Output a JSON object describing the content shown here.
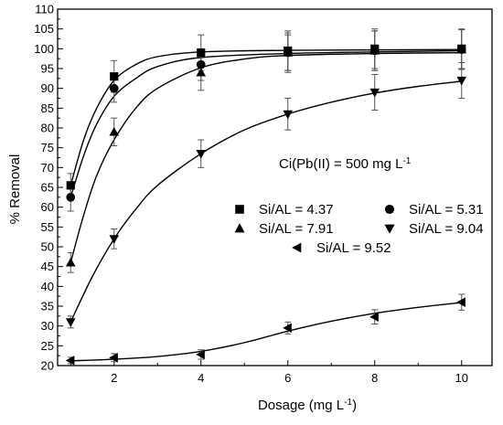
{
  "chart_data": {
    "type": "scatter",
    "title": "",
    "xlabel": "Dosage (mg L",
    "xlabel_sup": "-1",
    "xlabel_suffix": ")",
    "ylabel": "% Removal",
    "xlim": [
      0.7,
      10.7
    ],
    "ylim": [
      20,
      110
    ],
    "xticks": [
      2,
      4,
      6,
      8,
      10
    ],
    "yticks": [
      20,
      25,
      30,
      35,
      40,
      45,
      50,
      55,
      60,
      65,
      70,
      75,
      80,
      85,
      90,
      95,
      100,
      105,
      110
    ],
    "grid": false,
    "legend_position": "center-right",
    "annotation": {
      "text": "Ci(Pb(II) = 500 mg L",
      "sup": "-1"
    },
    "series": [
      {
        "name": "Si/AL = 4.37",
        "marker": "square",
        "x": [
          1,
          2,
          4,
          6,
          8,
          10
        ],
        "y": [
          65.5,
          93,
          99,
          99.5,
          100,
          100
        ],
        "err": [
          3,
          4,
          4.5,
          5,
          5,
          5
        ],
        "fit": [
          [
            1,
            65.5
          ],
          [
            1.3,
            77
          ],
          [
            1.6,
            85
          ],
          [
            2,
            92
          ],
          [
            2.5,
            96
          ],
          [
            3,
            98
          ],
          [
            4,
            99.2
          ],
          [
            6,
            99.6
          ],
          [
            8,
            99.7
          ],
          [
            10,
            99.8
          ]
        ]
      },
      {
        "name": "Si/AL = 5.31",
        "marker": "circle",
        "x": [
          1,
          2,
          4,
          6,
          8,
          10
        ],
        "y": [
          62.5,
          90,
          96,
          99,
          99.5,
          99.8
        ],
        "err": [
          3.5,
          3.5,
          4,
          4.5,
          5,
          5
        ],
        "fit": [
          [
            1,
            62.5
          ],
          [
            1.3,
            73
          ],
          [
            1.6,
            81
          ],
          [
            2,
            88
          ],
          [
            2.5,
            92.5
          ],
          [
            3,
            95.5
          ],
          [
            4,
            97.8
          ],
          [
            6,
            98.8
          ],
          [
            8,
            99.2
          ],
          [
            10,
            99.5
          ]
        ]
      },
      {
        "name": "Si/AL = 7.91",
        "marker": "triangle-up",
        "x": [
          1,
          2,
          4,
          6,
          8,
          10
        ],
        "y": [
          46,
          79,
          94,
          99,
          99.5,
          99.8
        ],
        "err": [
          2.5,
          3.5,
          4.5,
          5,
          5,
          5
        ],
        "fit": [
          [
            1,
            46
          ],
          [
            1.3,
            58
          ],
          [
            1.6,
            68
          ],
          [
            2,
            77
          ],
          [
            2.5,
            85
          ],
          [
            3,
            90
          ],
          [
            4,
            95.2
          ],
          [
            5,
            97.4
          ],
          [
            6,
            98.3
          ],
          [
            8,
            98.8
          ],
          [
            10,
            99
          ]
        ]
      },
      {
        "name": "Si/AL = 9.04",
        "marker": "triangle-down",
        "x": [
          1,
          2,
          4,
          6,
          8,
          10
        ],
        "y": [
          31,
          52,
          73.5,
          83.5,
          89,
          92
        ],
        "err": [
          1.5,
          2.5,
          3.5,
          4,
          4.5,
          4.5
        ],
        "fit": [
          [
            1,
            31
          ],
          [
            1.5,
            42.5
          ],
          [
            2,
            52
          ],
          [
            2.5,
            59.5
          ],
          [
            3,
            65.5
          ],
          [
            4,
            73.5
          ],
          [
            5,
            79.5
          ],
          [
            6,
            83.5
          ],
          [
            7,
            86.5
          ],
          [
            8,
            88.8
          ],
          [
            9,
            90.5
          ],
          [
            10,
            91.8
          ]
        ]
      },
      {
        "name": "Si/AL = 9.52",
        "marker": "triangle-left",
        "x": [
          1,
          2,
          4,
          6,
          8,
          10
        ],
        "y": [
          21.3,
          22,
          22.8,
          29.5,
          32.3,
          36
        ],
        "err": [
          0.8,
          1,
          1.2,
          1.5,
          1.8,
          2
        ],
        "fit": [
          [
            1,
            21.2
          ],
          [
            2,
            21.6
          ],
          [
            3,
            22.3
          ],
          [
            4,
            23.6
          ],
          [
            5,
            25.8
          ],
          [
            6,
            28.7
          ],
          [
            7,
            31.2
          ],
          [
            8,
            33.2
          ],
          [
            9,
            34.7
          ],
          [
            10,
            35.9
          ]
        ]
      }
    ]
  }
}
